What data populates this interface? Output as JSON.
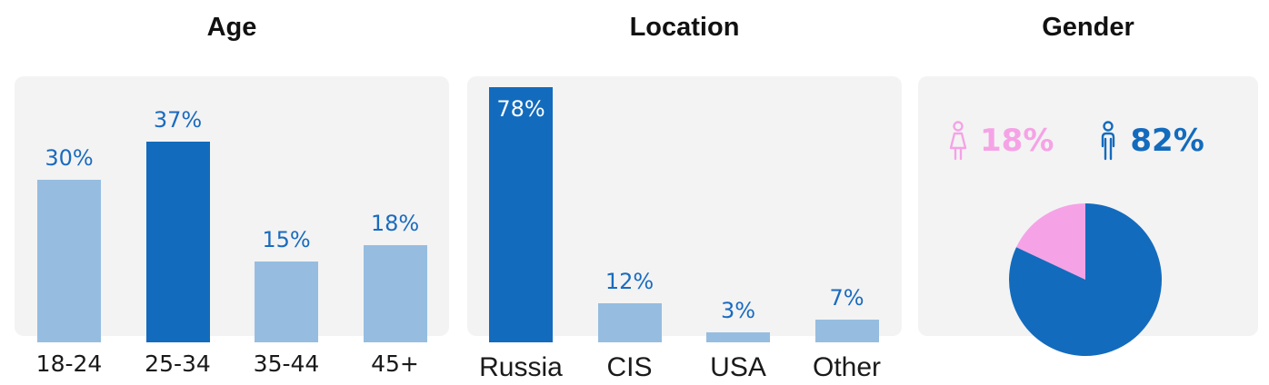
{
  "colors": {
    "bar_light": "#96bde0",
    "bar_dark": "#136bbd",
    "value_text": "#1a6bbf",
    "female": "#f5a3e6",
    "male": "#136bbd",
    "panel": "#f3f3f3"
  },
  "chart_data": [
    {
      "type": "bar",
      "title": "Age",
      "categories": [
        "18-24",
        "25-34",
        "35-44",
        "45+"
      ],
      "values": [
        30,
        37,
        15,
        18
      ],
      "value_labels": [
        "30%",
        "37%",
        "15%",
        "18%"
      ],
      "highlight_index": 1,
      "ylim": [
        0,
        50
      ]
    },
    {
      "type": "bar",
      "title": "Location",
      "categories": [
        "Russia",
        "CIS",
        "USA",
        "Other"
      ],
      "values": [
        78,
        12,
        3,
        7
      ],
      "value_labels": [
        "78%",
        "12%",
        "3%",
        "7%"
      ],
      "highlight_index": 0,
      "ylim": [
        0,
        78
      ]
    },
    {
      "type": "pie",
      "title": "Gender",
      "slices": [
        {
          "label": "female",
          "value": 18,
          "value_label": "18%",
          "icon": "female-icon",
          "color": "#f5a3e6"
        },
        {
          "label": "male",
          "value": 82,
          "value_label": "82%",
          "icon": "male-icon",
          "color": "#136bbd"
        }
      ]
    }
  ]
}
